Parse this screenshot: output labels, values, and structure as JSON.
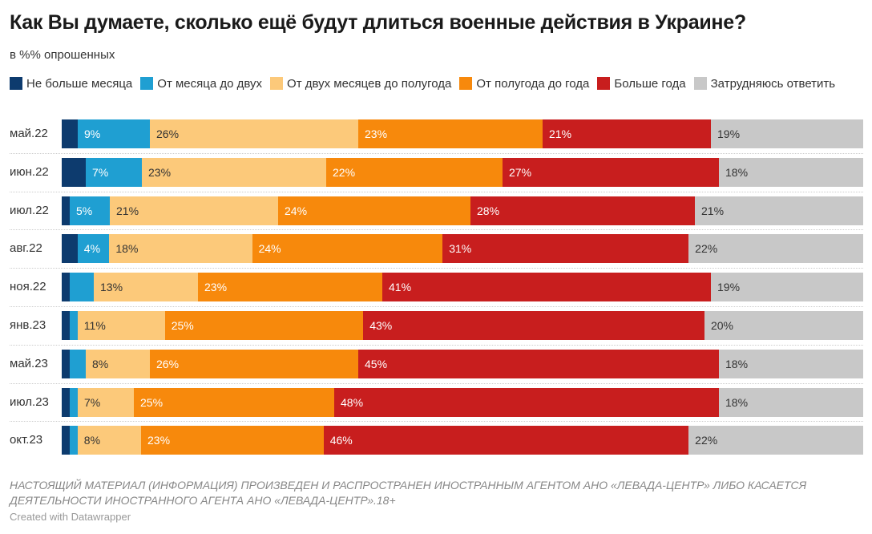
{
  "title": "Как Вы думаете, сколько ещё будут длиться военные действия в Украине?",
  "subtitle": "в %% опрошенных",
  "footer_note": "НАСТОЯЩИЙ МАТЕРИАЛ (ИНФОРМАЦИЯ) ПРОИЗВЕДЕН И РАСПРОСТРАНЕН ИНОСТРАННЫМ АГЕНТОМ АНО «ЛЕВАДА-ЦЕНТР» ЛИБО КАСАЕТСЯ ДЕЯТЕЛЬНОСТИ ИНОСТРАННОГО АГЕНТА АНО «ЛЕВАДА-ЦЕНТР».18+",
  "credit": "Created with Datawrapper",
  "chart_data": {
    "type": "bar",
    "orientation": "horizontal",
    "stacked": true,
    "title": "Как Вы думаете, сколько ещё будут длиться военные действия в Украине?",
    "subtitle": "в %% опрошенных",
    "xlim": [
      0,
      100
    ],
    "legend_position": "top",
    "categories": [
      "май.22",
      "июн.22",
      "июл.22",
      "авг.22",
      "ноя.22",
      "янв.23",
      "май.23",
      "июл.23",
      "окт.23"
    ],
    "series": [
      {
        "name": "Не больше месяца",
        "color": "#0d3b6e",
        "values": [
          2,
          3,
          1,
          2,
          1,
          1,
          1,
          1,
          1
        ],
        "labeled": [
          false,
          false,
          false,
          false,
          false,
          false,
          false,
          false,
          false
        ]
      },
      {
        "name": "От месяца до двух",
        "color": "#1f9fd2",
        "values": [
          9,
          7,
          5,
          4,
          3,
          1,
          2,
          1,
          1
        ],
        "labeled": [
          true,
          true,
          true,
          true,
          false,
          false,
          false,
          false,
          false
        ]
      },
      {
        "name": "От двух месяцев до полугода",
        "color": "#fcc97a",
        "values": [
          26,
          23,
          21,
          18,
          13,
          11,
          8,
          7,
          8
        ],
        "labeled": [
          true,
          true,
          true,
          true,
          true,
          true,
          true,
          true,
          true
        ]
      },
      {
        "name": "От полугода до года",
        "color": "#f7890c",
        "values": [
          23,
          22,
          24,
          24,
          23,
          25,
          26,
          25,
          23
        ],
        "labeled": [
          true,
          true,
          true,
          true,
          true,
          true,
          true,
          true,
          true
        ]
      },
      {
        "name": "Больше года",
        "color": "#c81e1e",
        "values": [
          21,
          27,
          28,
          31,
          41,
          43,
          45,
          48,
          46
        ],
        "labeled": [
          true,
          true,
          true,
          true,
          true,
          true,
          true,
          true,
          true
        ]
      },
      {
        "name": "Затрудняюсь ответить",
        "color": "#c8c8c8",
        "values": [
          19,
          18,
          21,
          22,
          19,
          20,
          18,
          18,
          22
        ],
        "labeled": [
          true,
          true,
          true,
          true,
          true,
          true,
          true,
          true,
          true
        ]
      }
    ],
    "label_colors": [
      "#ffffff",
      "#ffffff",
      "#333333",
      "#ffffff",
      "#ffffff",
      "#333333"
    ]
  }
}
